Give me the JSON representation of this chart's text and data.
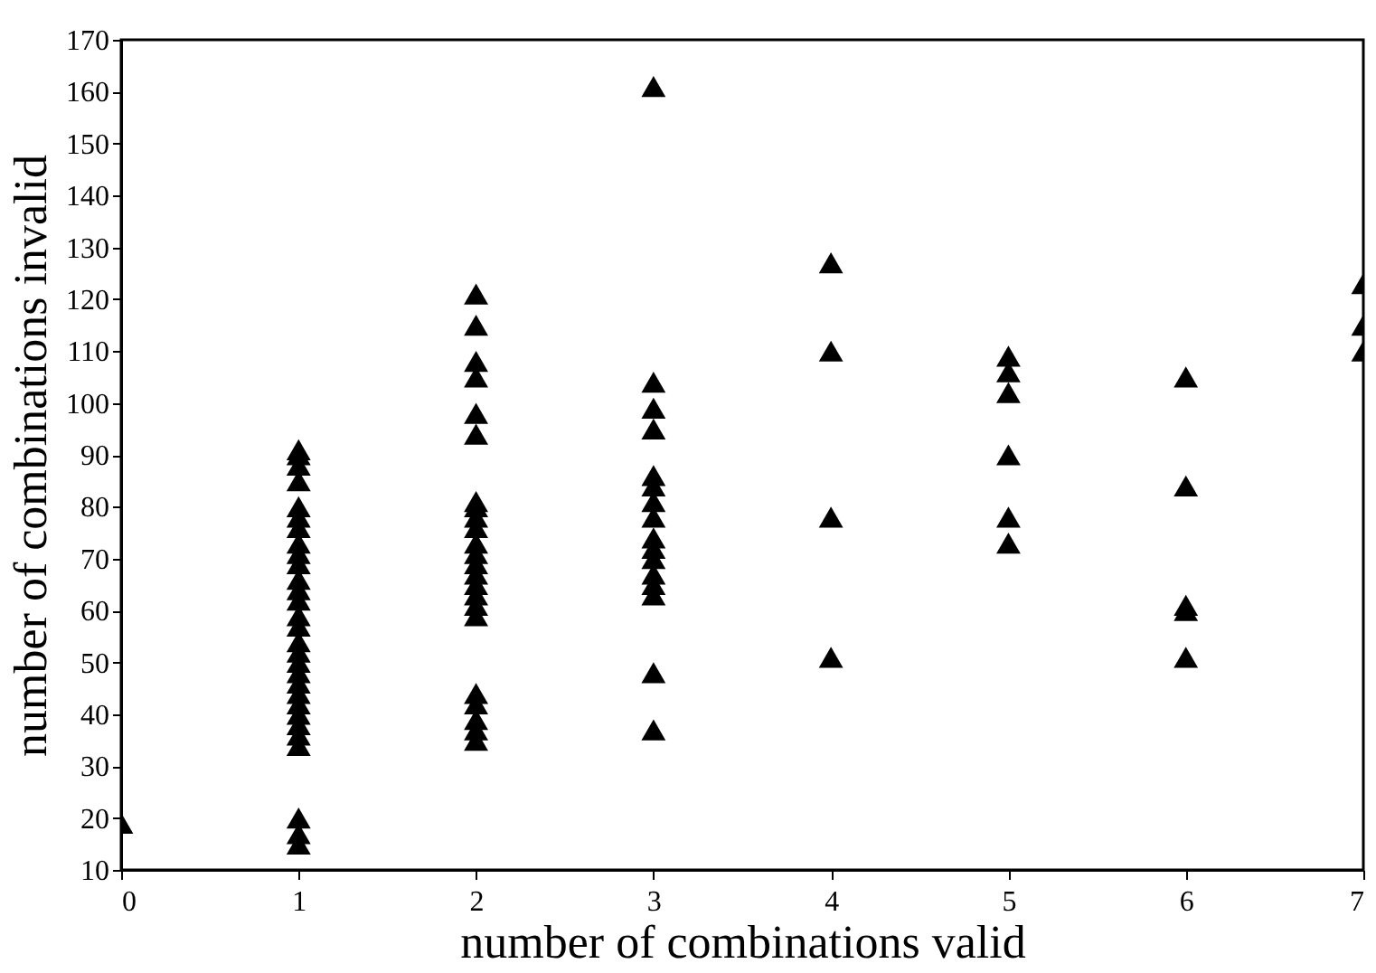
{
  "chart_data": {
    "type": "scatter",
    "xlabel": "number of combinations valid",
    "ylabel": "number of combinations invalid",
    "marker": "triangle",
    "grid": false,
    "xlim": [
      0,
      7
    ],
    "xticks": [
      0,
      1,
      2,
      3,
      4,
      5,
      6,
      7
    ],
    "ylim": [
      10,
      170
    ],
    "yticks": [
      10,
      20,
      30,
      40,
      50,
      60,
      70,
      80,
      90,
      100,
      110,
      120,
      130,
      140,
      150,
      160,
      170
    ],
    "series": [
      {
        "color": "#000000",
        "x": [
          0,
          1,
          1,
          1,
          1,
          1,
          1,
          1,
          1,
          1,
          1,
          1,
          1,
          1,
          1,
          1,
          1,
          1,
          1,
          1,
          1,
          1,
          1,
          1,
          1,
          1,
          1,
          1,
          1,
          1,
          2,
          2,
          2,
          2,
          2,
          2,
          2,
          2,
          2,
          2,
          2,
          2,
          2,
          2,
          2,
          2,
          2,
          2,
          2,
          2,
          2,
          2,
          2,
          3,
          3,
          3,
          3,
          3,
          3,
          3,
          3,
          3,
          3,
          3,
          3,
          3,
          3,
          3,
          3,
          4,
          4,
          4,
          4,
          5,
          5,
          5,
          5,
          5,
          5,
          6,
          6,
          6,
          6,
          6,
          7,
          7,
          7
        ],
        "values": [
          19,
          15,
          17,
          20,
          34,
          36,
          38,
          40,
          42,
          44,
          46,
          48,
          50,
          52,
          54,
          57,
          59,
          62,
          64,
          66,
          69,
          71,
          73,
          76,
          78,
          80,
          85,
          88,
          90,
          91,
          35,
          37,
          39,
          42,
          44,
          59,
          61,
          63,
          65,
          67,
          69,
          71,
          73,
          76,
          78,
          80,
          81,
          94,
          98,
          105,
          108,
          115,
          121,
          37,
          48,
          63,
          65,
          67,
          70,
          72,
          74,
          78,
          81,
          84,
          86,
          95,
          99,
          104,
          161,
          51,
          78,
          110,
          127,
          73,
          78,
          90,
          102,
          106,
          109,
          51,
          60,
          61,
          84,
          105,
          110,
          115,
          123
        ]
      }
    ]
  }
}
